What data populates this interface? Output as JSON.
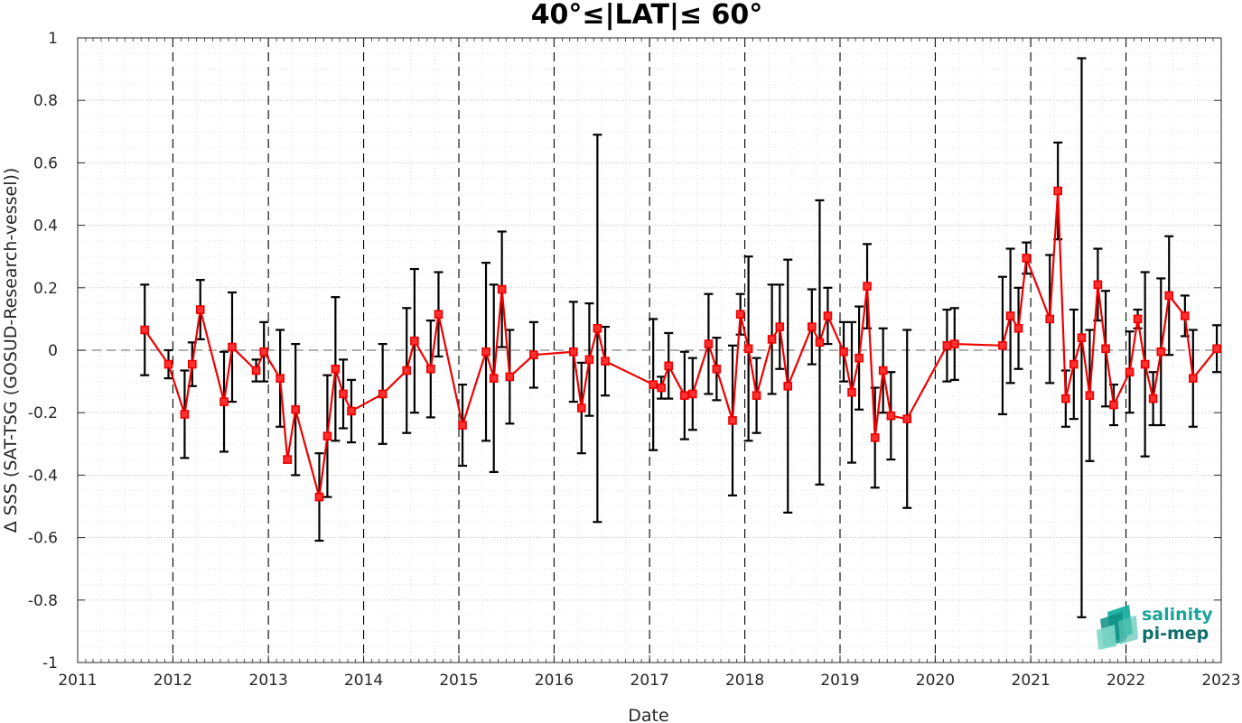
{
  "chart_data": {
    "type": "line",
    "title": "40°≤|LAT|≤ 60°",
    "xlabel": "Date",
    "ylabel": "Δ SSS (SAT-TSG (GOSUD-Research-vessel))",
    "xlim": [
      "2011-01-01",
      "2023-01-01"
    ],
    "ylim": [
      -1,
      1
    ],
    "x_ticks": [
      "2011",
      "2012",
      "2013",
      "2014",
      "2015",
      "2016",
      "2017",
      "2018",
      "2019",
      "2020",
      "2021",
      "2022",
      "2023"
    ],
    "y_ticks": [
      "-1",
      "-0.8",
      "-0.6",
      "-0.4",
      "-0.2",
      "0",
      "0.2",
      "0.4",
      "0.6",
      "0.8",
      "1"
    ],
    "grid": true,
    "minor_grid": true,
    "year_boundary_lines": "dashed-vertical",
    "zero_line": "dashed-horizontal",
    "series_color": "#ee0000",
    "errorbar_color": "#000000",
    "marker": "square",
    "points": [
      {
        "x": "2011-09-15",
        "y": 0.065,
        "err": 0.145
      },
      {
        "x": "2011-12-15",
        "y": -0.045,
        "err": 0.045
      },
      {
        "x": "2012-02-15",
        "y": -0.205,
        "err": 0.14
      },
      {
        "x": "2012-03-15",
        "y": -0.045,
        "err": 0.07
      },
      {
        "x": "2012-04-15",
        "y": 0.13,
        "err": 0.095
      },
      {
        "x": "2012-07-15",
        "y": -0.165,
        "err": 0.16
      },
      {
        "x": "2012-08-15",
        "y": 0.01,
        "err": 0.175
      },
      {
        "x": "2012-11-15",
        "y": -0.065,
        "err": 0.035
      },
      {
        "x": "2012-12-15",
        "y": -0.005,
        "err": 0.095
      },
      {
        "x": "2013-02-15",
        "y": -0.09,
        "err": 0.155
      },
      {
        "x": "2013-03-15",
        "y": -0.35,
        "err": 0.01
      },
      {
        "x": "2013-04-15",
        "y": -0.19,
        "err": 0.21
      },
      {
        "x": "2013-07-15",
        "y": -0.47,
        "err": 0.14
      },
      {
        "x": "2013-08-15",
        "y": -0.275,
        "err": 0.195
      },
      {
        "x": "2013-09-15",
        "y": -0.06,
        "err": 0.23
      },
      {
        "x": "2013-10-15",
        "y": -0.14,
        "err": 0.11
      },
      {
        "x": "2013-11-15",
        "y": -0.195,
        "err": 0.1
      },
      {
        "x": "2014-03-15",
        "y": -0.14,
        "err": 0.16
      },
      {
        "x": "2014-06-15",
        "y": -0.065,
        "err": 0.2
      },
      {
        "x": "2014-07-15",
        "y": 0.03,
        "err": 0.23
      },
      {
        "x": "2014-09-15",
        "y": -0.06,
        "err": 0.155
      },
      {
        "x": "2014-10-15",
        "y": 0.115,
        "err": 0.135
      },
      {
        "x": "2015-01-15",
        "y": -0.24,
        "err": 0.13
      },
      {
        "x": "2015-04-15",
        "y": -0.005,
        "err": 0.285
      },
      {
        "x": "2015-05-15",
        "y": -0.09,
        "err": 0.3
      },
      {
        "x": "2015-06-15",
        "y": 0.195,
        "err": 0.185
      },
      {
        "x": "2015-07-15",
        "y": -0.085,
        "err": 0.15
      },
      {
        "x": "2015-10-15",
        "y": -0.015,
        "err": 0.105
      },
      {
        "x": "2016-03-15",
        "y": -0.005,
        "err": 0.16
      },
      {
        "x": "2016-04-15",
        "y": -0.185,
        "err": 0.145
      },
      {
        "x": "2016-05-15",
        "y": -0.03,
        "err": 0.18
      },
      {
        "x": "2016-06-15",
        "y": 0.07,
        "err": 0.62
      },
      {
        "x": "2016-07-15",
        "y": -0.035,
        "err": 0.11
      },
      {
        "x": "2017-01-15",
        "y": -0.11,
        "err": 0.21
      },
      {
        "x": "2017-02-15",
        "y": -0.12,
        "err": 0.035
      },
      {
        "x": "2017-03-15",
        "y": -0.05,
        "err": 0.105
      },
      {
        "x": "2017-05-15",
        "y": -0.145,
        "err": 0.14
      },
      {
        "x": "2017-06-15",
        "y": -0.14,
        "err": 0.115
      },
      {
        "x": "2017-08-15",
        "y": 0.02,
        "err": 0.16
      },
      {
        "x": "2017-09-15",
        "y": -0.06,
        "err": 0.1
      },
      {
        "x": "2017-11-15",
        "y": -0.225,
        "err": 0.24
      },
      {
        "x": "2017-12-15",
        "y": 0.115,
        "err": 0.065
      },
      {
        "x": "2018-01-15",
        "y": 0.005,
        "err": 0.295
      },
      {
        "x": "2018-02-15",
        "y": -0.145,
        "err": 0.12
      },
      {
        "x": "2018-04-15",
        "y": 0.035,
        "err": 0.175
      },
      {
        "x": "2018-05-15",
        "y": 0.075,
        "err": 0.135
      },
      {
        "x": "2018-06-15",
        "y": -0.115,
        "err": 0.405
      },
      {
        "x": "2018-09-15",
        "y": 0.075,
        "err": 0.12
      },
      {
        "x": "2018-10-15",
        "y": 0.025,
        "err": 0.455
      },
      {
        "x": "2018-11-15",
        "y": 0.11,
        "err": 0.09
      },
      {
        "x": "2019-01-15",
        "y": -0.005,
        "err": 0.095
      },
      {
        "x": "2019-02-15",
        "y": -0.135,
        "err": 0.225
      },
      {
        "x": "2019-03-15",
        "y": -0.025,
        "err": 0.165
      },
      {
        "x": "2019-04-15",
        "y": 0.205,
        "err": 0.135
      },
      {
        "x": "2019-05-15",
        "y": -0.28,
        "err": 0.16
      },
      {
        "x": "2019-06-15",
        "y": -0.065,
        "err": 0.135
      },
      {
        "x": "2019-07-15",
        "y": -0.21,
        "err": 0.14
      },
      {
        "x": "2019-09-15",
        "y": -0.22,
        "err": 0.285
      },
      {
        "x": "2020-02-15",
        "y": 0.015,
        "err": 0.115
      },
      {
        "x": "2020-03-15",
        "y": 0.02,
        "err": 0.115
      },
      {
        "x": "2020-09-15",
        "y": 0.015,
        "err": 0.22
      },
      {
        "x": "2020-10-15",
        "y": 0.11,
        "err": 0.215
      },
      {
        "x": "2020-11-15",
        "y": 0.07,
        "err": 0.13
      },
      {
        "x": "2020-12-15",
        "y": 0.295,
        "err": 0.05
      },
      {
        "x": "2021-03-15",
        "y": 0.1,
        "err": 0.205
      },
      {
        "x": "2021-04-15",
        "y": 0.51,
        "err": 0.155
      },
      {
        "x": "2021-05-15",
        "y": -0.155,
        "err": 0.09
      },
      {
        "x": "2021-06-15",
        "y": -0.045,
        "err": 0.175
      },
      {
        "x": "2021-07-15",
        "y": 0.04,
        "err": 0.895
      },
      {
        "x": "2021-08-15",
        "y": -0.145,
        "err": 0.21
      },
      {
        "x": "2021-09-15",
        "y": 0.21,
        "err": 0.115
      },
      {
        "x": "2021-10-15",
        "y": 0.005,
        "err": 0.185
      },
      {
        "x": "2021-11-15",
        "y": -0.175,
        "err": 0.065
      },
      {
        "x": "2022-01-15",
        "y": -0.07,
        "err": 0.13
      },
      {
        "x": "2022-02-15",
        "y": 0.1,
        "err": 0.03
      },
      {
        "x": "2022-03-15",
        "y": -0.045,
        "err": 0.295
      },
      {
        "x": "2022-04-15",
        "y": -0.155,
        "err": 0.085
      },
      {
        "x": "2022-05-15",
        "y": -0.005,
        "err": 0.235
      },
      {
        "x": "2022-06-15",
        "y": 0.175,
        "err": 0.19
      },
      {
        "x": "2022-08-15",
        "y": 0.11,
        "err": 0.065
      },
      {
        "x": "2022-09-15",
        "y": -0.09,
        "err": 0.155
      },
      {
        "x": "2022-12-15",
        "y": 0.005,
        "err": 0.075
      }
    ]
  },
  "logo": {
    "line1": "salinity",
    "line2": "pi-mep",
    "color1": "#1aa49a",
    "color2": "#0e6f6a"
  }
}
